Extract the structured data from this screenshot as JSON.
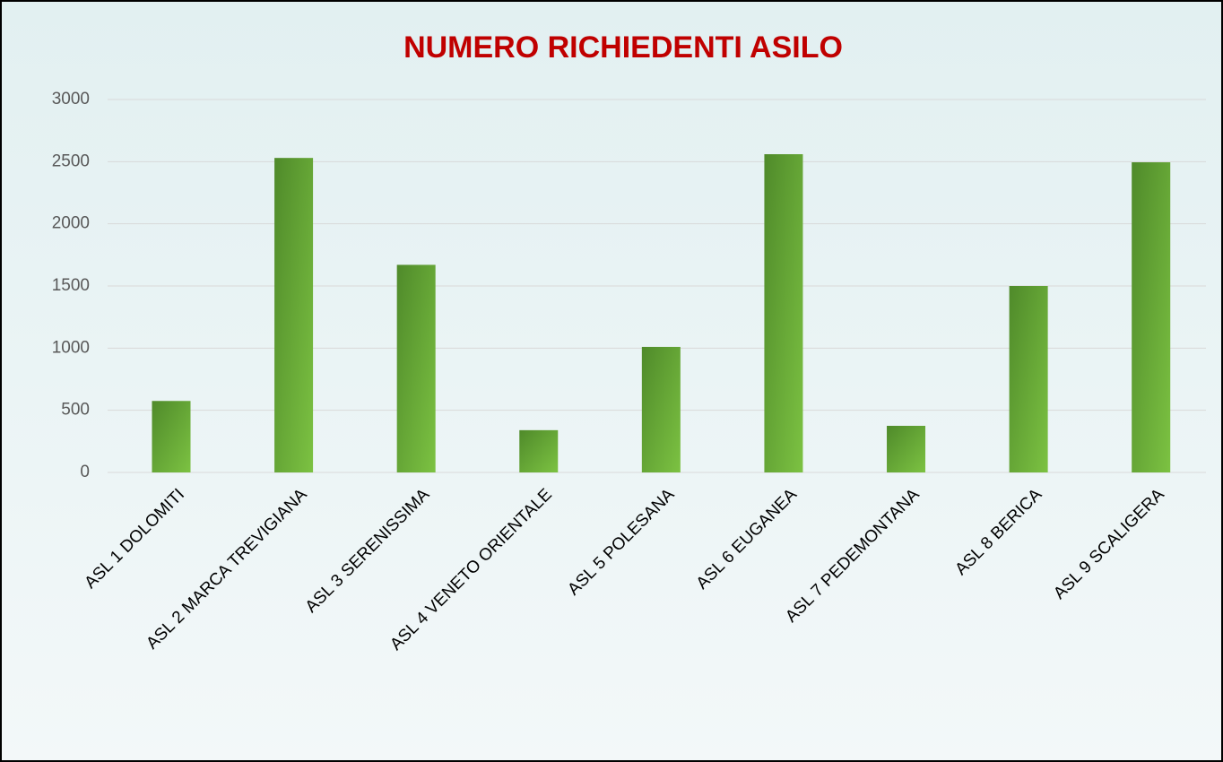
{
  "chart_data": {
    "type": "bar",
    "title": "NUMERO RICHIEDENTI ASILO",
    "categories": [
      "ASL 1 DOLOMITI",
      "ASL 2 MARCA TREVIGIANA",
      "ASL 3 SERENISSIMA",
      "ASL 4 VENETO ORIENTALE",
      "ASL 5 POLESANA",
      "ASL 6 EUGANEA",
      "ASL 7 PEDEMONTANA",
      "ASL 8 BERICA",
      "ASL 9 SCALIGERA"
    ],
    "values": [
      575,
      2530,
      1670,
      340,
      1010,
      2560,
      375,
      1500,
      2495
    ],
    "color": "#7cc242",
    "ylim": [
      0,
      3000
    ],
    "yticks": [
      0,
      500,
      1000,
      1500,
      2000,
      2500,
      3000
    ],
    "grid": true
  }
}
